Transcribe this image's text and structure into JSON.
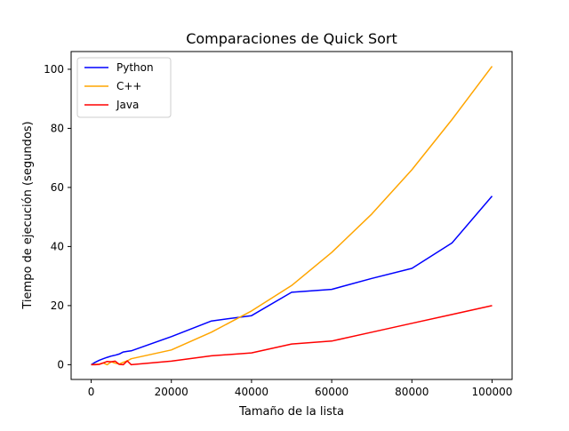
{
  "chart_data": {
    "type": "line",
    "title": "Comparaciones de Quick Sort",
    "xlabel": "Tamaño de la lista",
    "ylabel": "Tiempo de ejecución (segundos)",
    "xlim": [
      -5000,
      105000
    ],
    "ylim": [
      -5,
      106
    ],
    "xticks": [
      0,
      20000,
      40000,
      60000,
      80000,
      100000
    ],
    "xtick_labels": [
      "0",
      "20000",
      "40000",
      "60000",
      "80000",
      "100000"
    ],
    "yticks": [
      0,
      20,
      40,
      60,
      80,
      100
    ],
    "ytick_labels": [
      "0",
      "20",
      "40",
      "60",
      "80",
      "100"
    ],
    "grid": false,
    "legend_position": "top-left",
    "series": [
      {
        "name": "Python",
        "color": "#0000ff",
        "x": [
          0,
          1000,
          2000,
          3000,
          4000,
          5000,
          6000,
          7000,
          8000,
          9000,
          10000,
          20000,
          30000,
          40000,
          50000,
          60000,
          70000,
          80000,
          90000,
          100000
        ],
        "y": [
          0,
          0.8,
          1.5,
          2,
          2.5,
          2.9,
          3.2,
          3.6,
          4.3,
          4.5,
          4.7,
          9.5,
          14.8,
          16.6,
          24.5,
          25.5,
          29.2,
          32.6,
          41.2,
          57.1
        ]
      },
      {
        "name": "C++",
        "color": "#ffa500",
        "x": [
          0,
          1000,
          2000,
          3000,
          4000,
          5000,
          6000,
          7000,
          8000,
          9000,
          10000,
          20000,
          30000,
          40000,
          50000,
          60000,
          70000,
          80000,
          90000,
          100000
        ],
        "y": [
          0,
          0.1,
          0.2,
          0.6,
          0,
          1,
          0.5,
          0.2,
          0.8,
          1.3,
          2,
          5,
          11,
          18.2,
          26.8,
          38,
          51,
          66,
          83,
          101
        ]
      },
      {
        "name": "Java",
        "color": "#ff0000",
        "x": [
          0,
          1000,
          2000,
          3000,
          4000,
          5000,
          6000,
          7000,
          8000,
          9000,
          10000,
          20000,
          30000,
          40000,
          50000,
          60000,
          70000,
          80000,
          90000,
          100000
        ],
        "y": [
          0,
          0,
          0.1,
          0.6,
          1.1,
          1,
          1.2,
          0.1,
          0,
          1.3,
          0,
          1.2,
          3,
          4,
          7,
          8,
          11,
          14,
          17,
          20
        ]
      }
    ]
  }
}
